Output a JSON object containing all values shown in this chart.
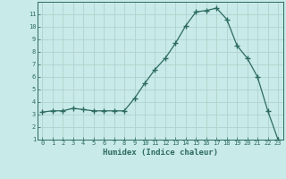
{
  "x": [
    0,
    1,
    2,
    3,
    4,
    5,
    6,
    7,
    8,
    9,
    10,
    11,
    12,
    13,
    14,
    15,
    16,
    17,
    18,
    19,
    20,
    21,
    22,
    23
  ],
  "y": [
    3.2,
    3.3,
    3.3,
    3.5,
    3.4,
    3.3,
    3.3,
    3.3,
    3.3,
    4.3,
    5.5,
    6.6,
    7.5,
    8.7,
    10.1,
    11.2,
    11.3,
    11.5,
    10.6,
    8.5,
    7.5,
    6.0,
    3.3,
    1.0
  ],
  "xlabel": "Humidex (Indice chaleur)",
  "xlim": [
    -0.5,
    23.5
  ],
  "ylim": [
    1,
    12
  ],
  "yticks": [
    1,
    2,
    3,
    4,
    5,
    6,
    7,
    8,
    9,
    10,
    11
  ],
  "xticks": [
    0,
    1,
    2,
    3,
    4,
    5,
    6,
    7,
    8,
    9,
    10,
    11,
    12,
    13,
    14,
    15,
    16,
    17,
    18,
    19,
    20,
    21,
    22,
    23
  ],
  "line_color": "#2d6b5e",
  "bg_color": "#c8eae8",
  "grid_color": "#b0d4cc",
  "tick_label_color": "#2d6b5e",
  "xlabel_color": "#2d6b5e"
}
